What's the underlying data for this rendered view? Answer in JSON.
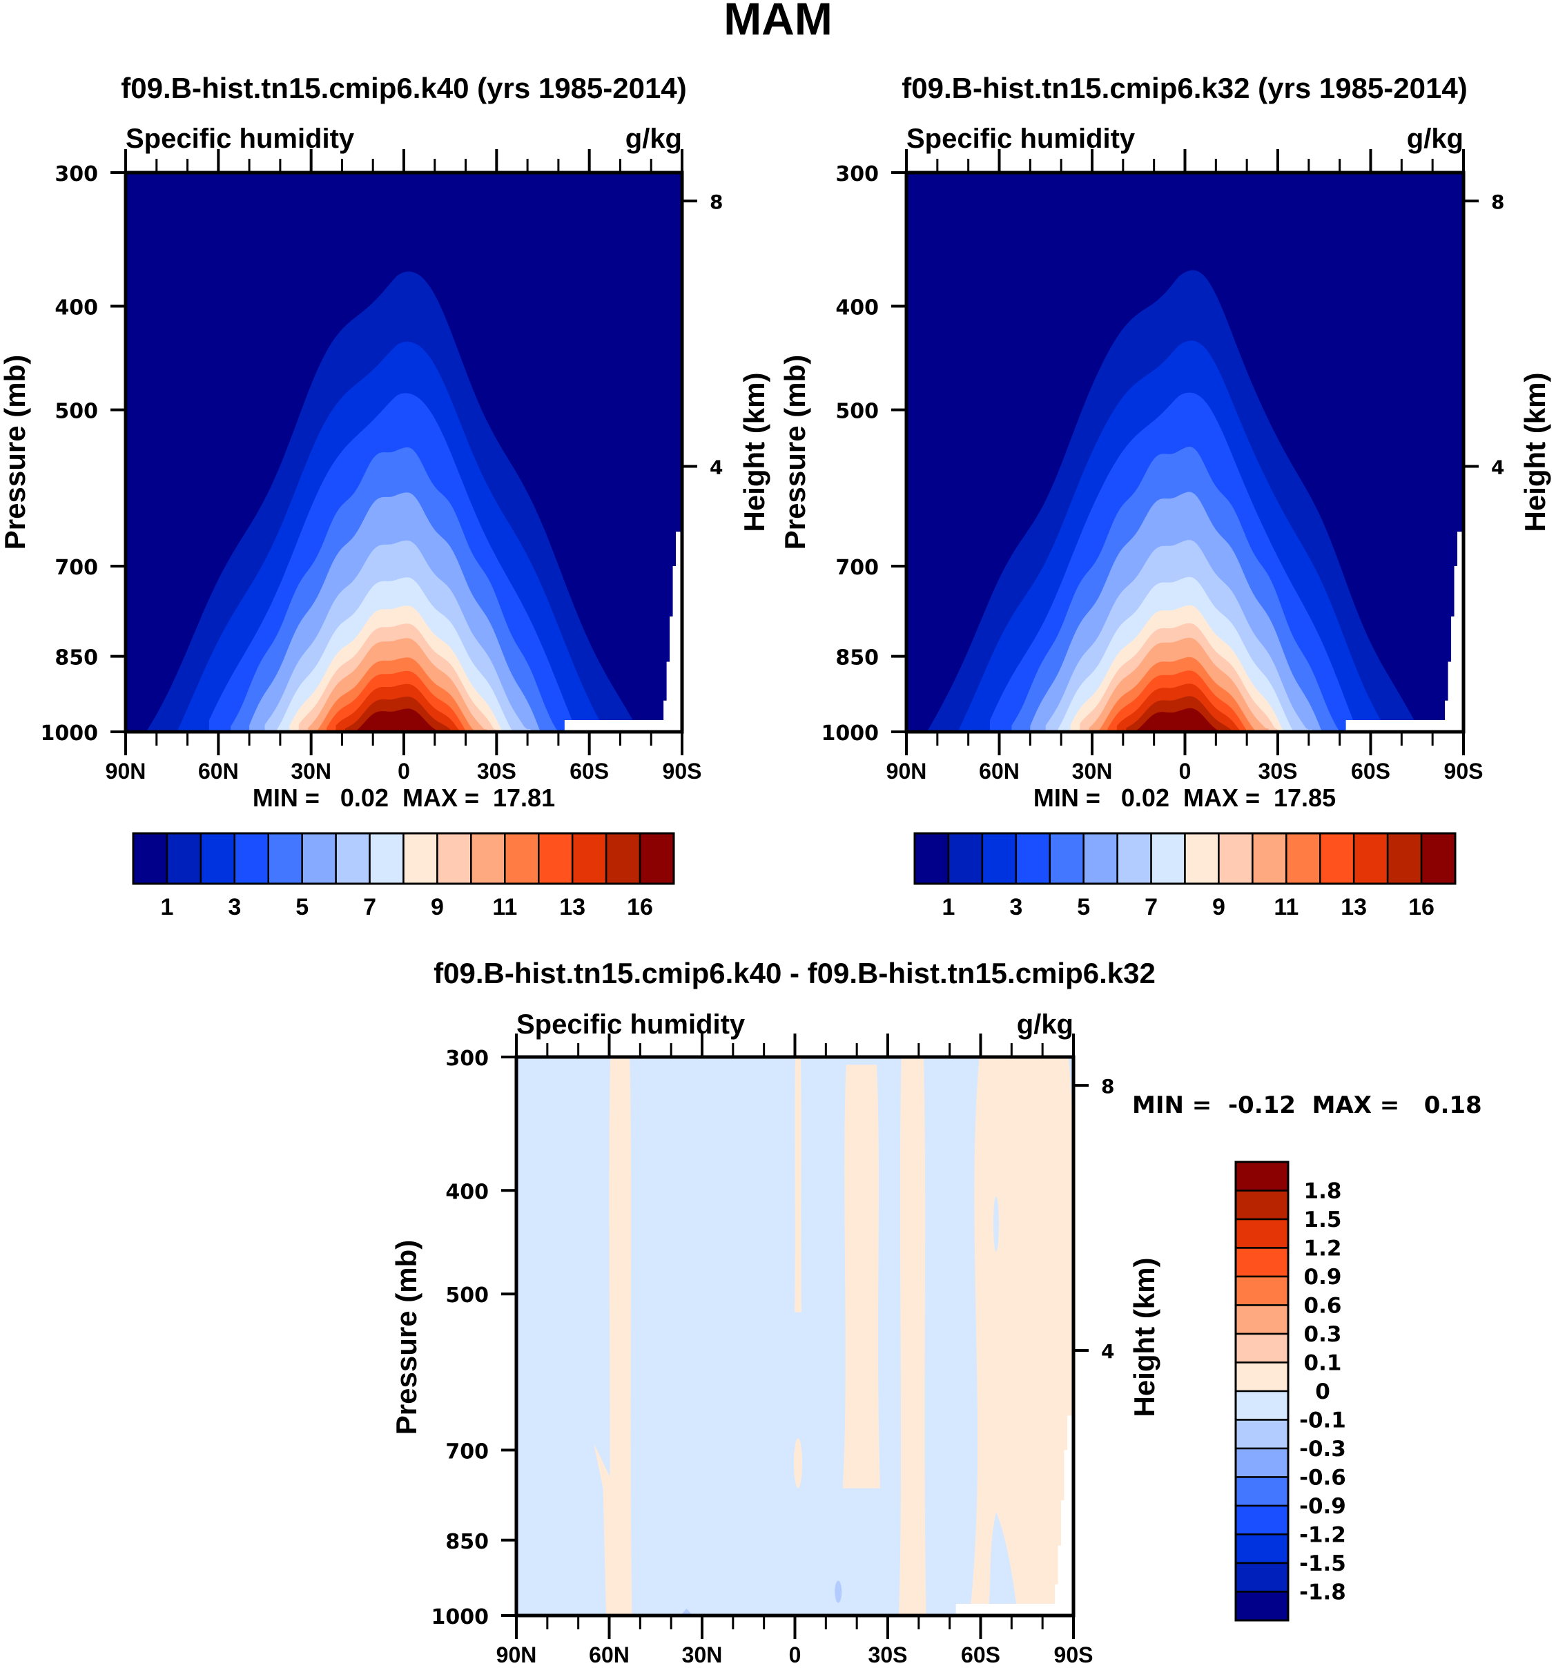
{
  "figure": {
    "title": "MAM"
  },
  "palette": {
    "colors": [
      "#00008b",
      "#0020bb",
      "#0033e0",
      "#1a4fff",
      "#4477ff",
      "#85aaff",
      "#b3ccff",
      "#d5e8ff",
      "#ffead8",
      "#ffcbb3",
      "#ffa981",
      "#ff7c45",
      "#ff521d",
      "#e33505",
      "#b82400",
      "#8b0000"
    ]
  },
  "chart_data": [
    {
      "type": "heatmap",
      "subtype": "filled-contour latitude-pressure cross section",
      "title": "f09.B-hist.tn15.cmip6.k40 (yrs 1985-2014)",
      "left_label": "Specific humidity",
      "units": "g/kg",
      "xlabel": "",
      "ylabel": "Pressure (mb)",
      "ylabel_right": "Height (km)",
      "x_ticks": [
        "90N",
        "60N",
        "30N",
        "0",
        "30S",
        "60S",
        "90S"
      ],
      "x_range": [
        90,
        -90
      ],
      "y_ticks": [
        300,
        400,
        500,
        700,
        850,
        1000
      ],
      "y_range": [
        300,
        1000
      ],
      "y_scale": "log",
      "y_right_ticks": [
        8,
        4
      ],
      "stats_text": "MIN =   0.02  MAX =  17.81",
      "min": 0.02,
      "max": 17.81,
      "colorbar": {
        "orientation": "horizontal",
        "levels": [
          0.5,
          1,
          2,
          3,
          4,
          5,
          6,
          7,
          8,
          9,
          10,
          11,
          12,
          13,
          14,
          16
        ],
        "tick_labels": [
          "1",
          "3",
          "5",
          "7",
          "9",
          "11",
          "13",
          "16"
        ]
      },
      "surface_peak_lat": 0,
      "field_shape": "moisture maximum near surface at equator, decreasing poleward and upward; missing below surface near Antarctica",
      "contour_tops_at_equator_mb": {
        "0.5": 370,
        "1": 430,
        "2": 480,
        "3": 540,
        "4": 595,
        "5": 660,
        "6": 715,
        "7": 760,
        "8": 790,
        "9": 815,
        "10": 850,
        "11": 875,
        "12": 900,
        "13": 925,
        "14": 950,
        "16": 970
      }
    },
    {
      "type": "heatmap",
      "subtype": "filled-contour latitude-pressure cross section",
      "title": "f09.B-hist.tn15.cmip6.k32 (yrs 1985-2014)",
      "left_label": "Specific humidity",
      "units": "g/kg",
      "xlabel": "",
      "ylabel": "Pressure (mb)",
      "ylabel_right": "Height (km)",
      "x_ticks": [
        "90N",
        "60N",
        "30N",
        "0",
        "30S",
        "60S",
        "90S"
      ],
      "x_range": [
        90,
        -90
      ],
      "y_ticks": [
        300,
        400,
        500,
        700,
        850,
        1000
      ],
      "y_range": [
        300,
        1000
      ],
      "y_scale": "log",
      "y_right_ticks": [
        8,
        4
      ],
      "stats_text": "MIN =   0.02  MAX =  17.85",
      "min": 0.02,
      "max": 17.85,
      "colorbar": {
        "orientation": "horizontal",
        "levels": [
          0.5,
          1,
          2,
          3,
          4,
          5,
          6,
          7,
          8,
          9,
          10,
          11,
          12,
          13,
          14,
          16
        ],
        "tick_labels": [
          "1",
          "3",
          "5",
          "7",
          "9",
          "11",
          "13",
          "16"
        ]
      },
      "surface_peak_lat": 0
    },
    {
      "type": "heatmap",
      "subtype": "filled-contour difference cross section",
      "title": "f09.B-hist.tn15.cmip6.k40 - f09.B-hist.tn15.cmip6.k32",
      "left_label": "Specific humidity",
      "units": "g/kg",
      "xlabel": "",
      "ylabel": "Pressure (mb)",
      "ylabel_right": "Height (km)",
      "x_ticks": [
        "90N",
        "60N",
        "30N",
        "0",
        "30S",
        "60S",
        "90S"
      ],
      "x_range": [
        90,
        -90
      ],
      "y_ticks": [
        300,
        400,
        500,
        700,
        850,
        1000
      ],
      "y_range": [
        300,
        1000
      ],
      "y_scale": "log",
      "y_right_ticks": [
        8,
        4
      ],
      "stats_text": "MIN =  -0.12  MAX =   0.18",
      "min": -0.12,
      "max": 0.18,
      "colorbar": {
        "orientation": "vertical",
        "levels": [
          -1.8,
          -1.5,
          -1.2,
          -0.9,
          -0.6,
          -0.3,
          -0.1,
          0,
          0.1,
          0.3,
          0.6,
          0.9,
          1.2,
          1.5,
          1.8
        ],
        "tick_labels": [
          "1.8",
          "1.5",
          "1.2",
          "0.9",
          "0.6",
          "0.3",
          "0.1",
          "0",
          "-0.1",
          "-0.3",
          "-0.6",
          "-0.9",
          "-1.2",
          "-1.5",
          "-1.8"
        ]
      },
      "background_class": "0 to -0.1 (light blue)",
      "positive_bands": [
        {
          "lat_from": 60,
          "lat_to": 53,
          "p_top": 300,
          "p_bottom": 1000,
          "class": "0 to 0.1"
        },
        {
          "lat_from": 0,
          "lat_to": -2,
          "p_top": 300,
          "p_bottom": 520,
          "class": "0 to 0.1"
        },
        {
          "lat_from": -16,
          "lat_to": -27,
          "p_top": 305,
          "p_bottom": 760,
          "class": "0 to 0.1"
        },
        {
          "lat_from": -34,
          "lat_to": -42,
          "p_top": 300,
          "p_bottom": 1000,
          "class": "0 to 0.1"
        },
        {
          "lat_from": -58,
          "lat_to": -90,
          "p_top": 300,
          "p_bottom": 1000,
          "class": "0 to 0.1"
        }
      ]
    }
  ]
}
